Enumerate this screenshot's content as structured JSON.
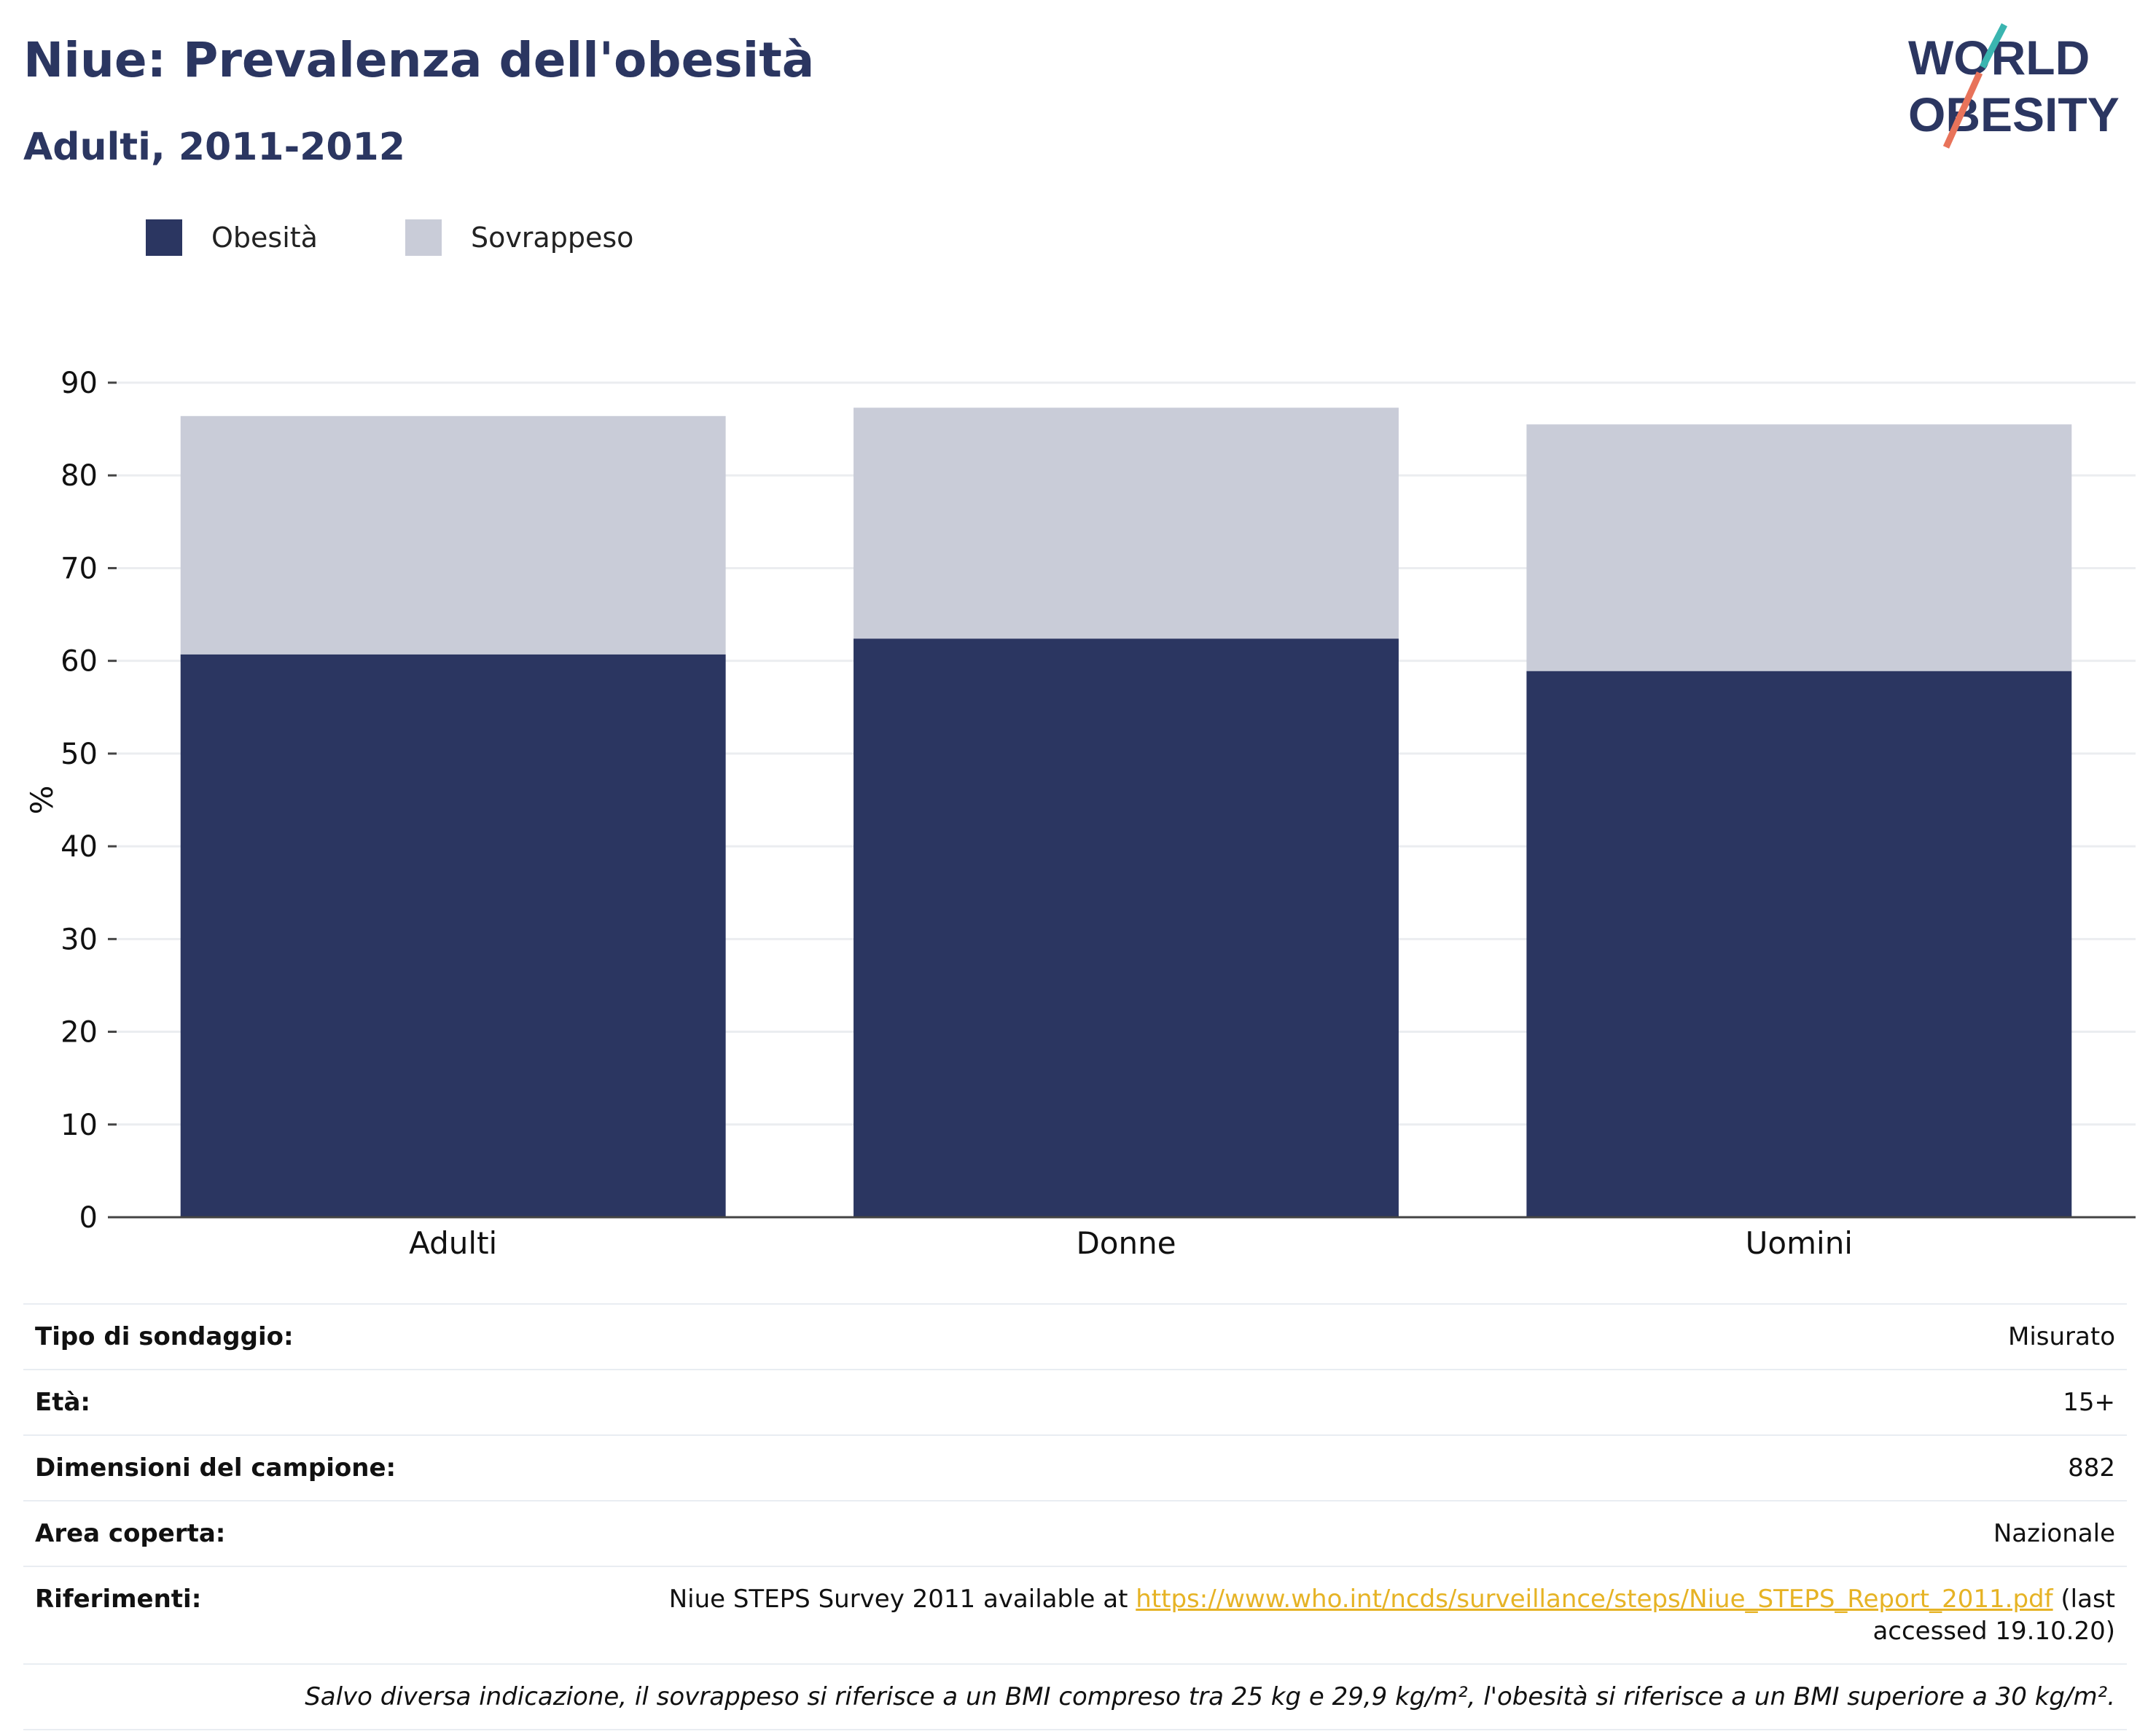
{
  "header": {
    "title": "Niue: Prevalenza dell'obesità",
    "subtitle": "Adulti, 2011-2012"
  },
  "logo": {
    "line1": "WORLD",
    "line2": "OBESITY",
    "colors": {
      "text": "#2b3661",
      "slash_top": "#3ab5b0",
      "slash_bottom": "#e8735a"
    }
  },
  "legend": {
    "items": [
      {
        "label": "Obesità",
        "color": "#2b3661"
      },
      {
        "label": "Sovrappeso",
        "color": "#c9ccd8"
      }
    ]
  },
  "chart_data": {
    "type": "bar",
    "stacked": true,
    "categories": [
      "Adulti",
      "Donne",
      "Uomini"
    ],
    "series": [
      {
        "name": "Obesità",
        "color": "#2b3661",
        "values": [
          60.7,
          62.4,
          58.9
        ]
      },
      {
        "name": "Sovrappeso",
        "color": "#c9ccd8",
        "values": [
          25.7,
          24.9,
          26.6
        ]
      }
    ],
    "ylabel": "%",
    "ylim": [
      0,
      90
    ],
    "yticks": [
      0,
      10,
      20,
      30,
      40,
      50,
      60,
      70,
      80,
      90
    ],
    "grid": true,
    "legend_position": "top-left"
  },
  "info": {
    "rows": [
      {
        "label": "Tipo di sondaggio:",
        "value": "Misurato"
      },
      {
        "label": "Età:",
        "value": "15+"
      },
      {
        "label": "Dimensioni del campione:",
        "value": "882"
      },
      {
        "label": "Area coperta:",
        "value": "Nazionale"
      }
    ],
    "reference": {
      "label": "Riferimenti:",
      "text_before": "Niue STEPS Survey 2011 available at ",
      "link": "https://www.who.int/ncds/surveillance/steps/Niue_STEPS_Report_2011.pdf",
      "text_after": " (last accessed 19.10.20)"
    },
    "note": "Salvo diversa indicazione, il sovrappeso si riferisce a un BMI compreso tra 25 kg e 29,9 kg/m², l'obesità si riferisce a un BMI superiore a 30 kg/m²."
  }
}
